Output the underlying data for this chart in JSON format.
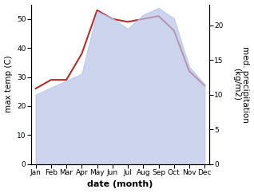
{
  "months": [
    "Jan",
    "Feb",
    "Mar",
    "Apr",
    "May",
    "Jun",
    "Jul",
    "Aug",
    "Sep",
    "Oct",
    "Nov",
    "Dec"
  ],
  "month_indices": [
    0,
    1,
    2,
    3,
    4,
    5,
    6,
    7,
    8,
    9,
    10,
    11
  ],
  "temp_max": [
    26,
    29,
    29,
    38,
    53,
    50,
    49,
    50,
    51,
    46,
    32,
    27
  ],
  "precip": [
    10.0,
    11.0,
    12.0,
    13.0,
    22.0,
    21.0,
    19.5,
    21.5,
    22.5,
    21.0,
    14.0,
    11.5
  ],
  "temp_color": "#b03030",
  "precip_fill_color": "#b8c4e8",
  "precip_alpha": 0.7,
  "ylabel_left": "max temp (C)",
  "ylabel_right": "med. precipitation\n(kg/m2)",
  "xlabel": "date (month)",
  "ylim_left": [
    0,
    55
  ],
  "ylim_right": [
    0,
    23
  ],
  "yticks_left": [
    0,
    10,
    20,
    30,
    40,
    50
  ],
  "yticks_right": [
    0,
    5,
    10,
    15,
    20
  ],
  "background_color": "#ffffff",
  "label_fontsize": 7.5,
  "tick_fontsize": 6.5,
  "xlabel_fontsize": 8,
  "linewidth": 1.5
}
